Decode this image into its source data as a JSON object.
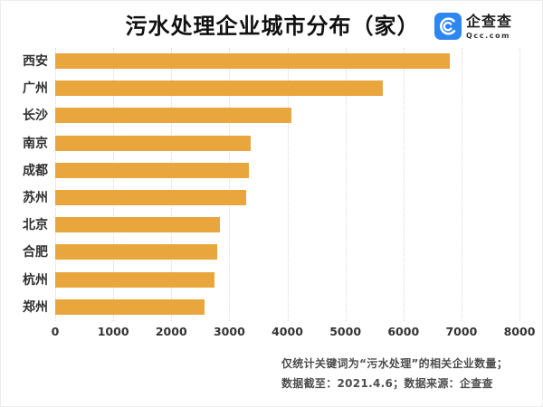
{
  "header": {
    "title": "污水处理企业城市分布（家）"
  },
  "brand": {
    "name": "企查查",
    "domain": "Qcc.com",
    "logo_color": "#2E86F0"
  },
  "chart_data": {
    "type": "bar",
    "orientation": "horizontal",
    "title": "污水处理企业城市分布（家）",
    "categories": [
      "西安",
      "广州",
      "长沙",
      "南京",
      "成都",
      "苏州",
      "北京",
      "合肥",
      "杭州",
      "郑州"
    ],
    "values": [
      6800,
      5650,
      4070,
      3370,
      3330,
      3290,
      2840,
      2790,
      2740,
      2580
    ],
    "xlim": [
      0,
      8000
    ],
    "x_ticks": [
      0,
      1000,
      2000,
      3000,
      4000,
      5000,
      6000,
      7000,
      8000
    ],
    "xlabel": "",
    "ylabel": "",
    "bar_color": "#E8A63C",
    "grid": "vertical-dotted",
    "legend": "none"
  },
  "footer": {
    "line1": "仅统计关键词为“污水处理”的相关企业数量；",
    "line2": "数据截至：2021.4.6；数据来源：企查查"
  }
}
